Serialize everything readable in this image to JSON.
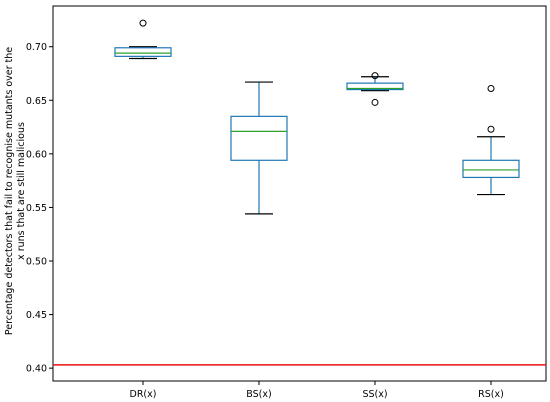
{
  "chart_data": {
    "type": "box",
    "title": "",
    "xlabel": "",
    "ylabel_lines": [
      "Percentage detectors that fail to recognise mutants over the",
      "x runs that are still malicious"
    ],
    "ylim": [
      0.388,
      0.738
    ],
    "yticks": [
      0.4,
      0.45,
      0.5,
      0.55,
      0.6,
      0.65,
      0.7
    ],
    "ytick_labels": [
      "0.40",
      "0.45",
      "0.50",
      "0.55",
      "0.60",
      "0.65",
      "0.70"
    ],
    "categories": [
      "DR(x)",
      "BS(x)",
      "SS(x)",
      "RS(x)"
    ],
    "boxes": [
      {
        "label": "DR(x)",
        "whisker_low": 0.689,
        "q1": 0.691,
        "median": 0.694,
        "q3": 0.699,
        "whisker_high": 0.7,
        "outliers": [
          0.722
        ]
      },
      {
        "label": "BS(x)",
        "whisker_low": 0.544,
        "q1": 0.594,
        "median": 0.621,
        "q3": 0.635,
        "whisker_high": 0.667,
        "outliers": []
      },
      {
        "label": "SS(x)",
        "whisker_low": 0.659,
        "q1": 0.66,
        "median": 0.661,
        "q3": 0.666,
        "whisker_high": 0.672,
        "outliers": [
          0.673,
          0.648
        ]
      },
      {
        "label": "RS(x)",
        "whisker_low": 0.562,
        "q1": 0.578,
        "median": 0.585,
        "q3": 0.594,
        "whisker_high": 0.616,
        "outliers": [
          0.623,
          0.661
        ]
      }
    ],
    "reference_line": {
      "y": 0.403,
      "color": "#e8110f"
    },
    "colors": {
      "box": "#1f77b4",
      "median": "#2ca02c",
      "whisker": "#000000",
      "outlier": "#000000"
    },
    "grid": false,
    "legend": "none"
  }
}
